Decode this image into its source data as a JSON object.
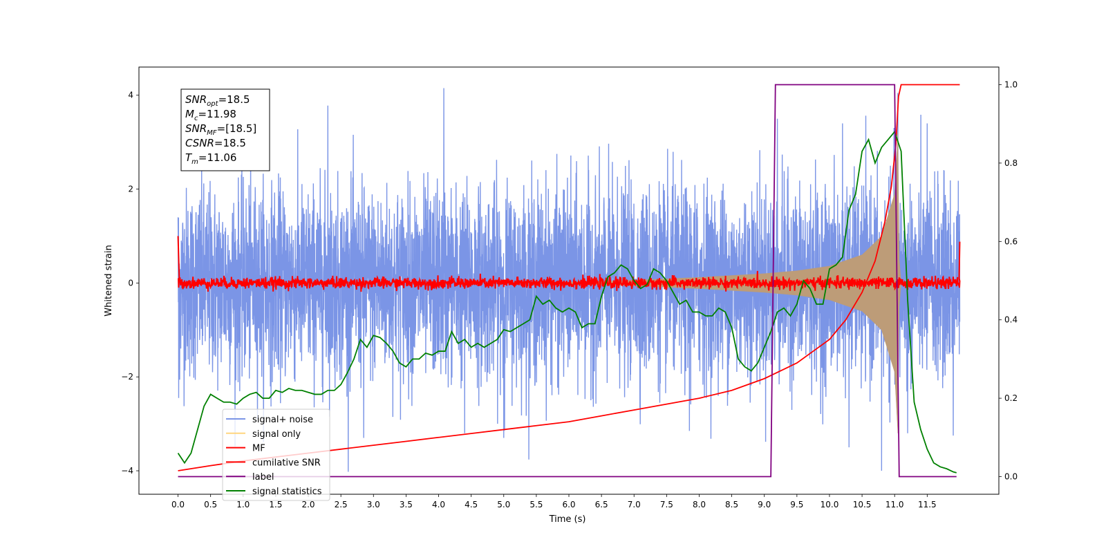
{
  "chart_data": {
    "type": "line",
    "title": "",
    "xlabel": "Time (s)",
    "ylabel": "Whitened strain",
    "xlim": [
      -0.6,
      12.6
    ],
    "ylim": [
      -4.5,
      4.6
    ],
    "y2lim": [
      -0.045,
      1.045
    ],
    "xticks": [
      0.0,
      0.5,
      1.0,
      1.5,
      2.0,
      2.5,
      3.0,
      3.5,
      4.0,
      4.5,
      5.0,
      5.5,
      6.0,
      6.5,
      7.0,
      7.5,
      8.0,
      8.5,
      9.0,
      9.5,
      10.0,
      10.5,
      11.0,
      11.5
    ],
    "xtick_labels": [
      "0.0",
      "0.5",
      "1.0",
      "1.5",
      "2.0",
      "2.5",
      "3.0",
      "3.5",
      "4.0",
      "4.5",
      "5.0",
      "5.5",
      "6.0",
      "6.5",
      "7.0",
      "7.5",
      "8.0",
      "8.5",
      "9.0",
      "9.5",
      "10.0",
      "10.5",
      "11.0",
      "11.5"
    ],
    "yticks": [
      -4,
      -2,
      0,
      2,
      4
    ],
    "ytick_labels": [
      "−4",
      "−2",
      "0",
      "2",
      "4"
    ],
    "y2ticks": [
      0.0,
      0.2,
      0.4,
      0.6,
      0.8,
      1.0
    ],
    "y2tick_labels": [
      "0.0",
      "0.2",
      "0.4",
      "0.6",
      "0.8",
      "1.0"
    ],
    "grid": false,
    "legend_position": "lower-left",
    "annotation": {
      "lines": [
        {
          "base": "SNR",
          "sub": "opt",
          "value": "=18.5"
        },
        {
          "base": "M",
          "sub": "c",
          "value": "=11.98"
        },
        {
          "base": "SNR",
          "sub": "MF",
          "value": "=[18.5]"
        },
        {
          "base": "CSNR",
          "sub": "",
          "value": "=18.5"
        },
        {
          "base": "T",
          "sub": "m",
          "value": "=11.06"
        }
      ]
    },
    "series": [
      {
        "name": "signal+ noise",
        "color": "#7b95e6",
        "axis": "left",
        "kind": "noise",
        "x_range": [
          0,
          12.0
        ],
        "noise_sigma": 1.0,
        "peaks": [
          [
            0.0,
            1.4
          ],
          [
            0.01,
            -2.45
          ],
          [
            4.08,
            4.15
          ],
          [
            2.3,
            3.78
          ],
          [
            9.2,
            3.5
          ],
          [
            10.2,
            3.4
          ],
          [
            11.5,
            3.4
          ],
          [
            10.8,
            -4.0
          ],
          [
            10.3,
            -3.5
          ],
          [
            2.85,
            -3.3
          ],
          [
            5.0,
            -3.3
          ],
          [
            4.4,
            -3.2
          ],
          [
            7.85,
            -3.15
          ],
          [
            11.2,
            -3.2
          ],
          [
            11.9,
            -3.25
          ],
          [
            11.05,
            4.05
          ]
        ]
      },
      {
        "name": "signal only",
        "color": "#ffd57f",
        "fill_color": "#bd9c78",
        "axis": "left",
        "kind": "chirp-envelope",
        "amplitude": [
          [
            6.0,
            0.02
          ],
          [
            7.0,
            0.06
          ],
          [
            8.0,
            0.12
          ],
          [
            9.0,
            0.2
          ],
          [
            9.5,
            0.26
          ],
          [
            10.0,
            0.36
          ],
          [
            10.5,
            0.6
          ],
          [
            10.8,
            1.0
          ],
          [
            11.0,
            1.9
          ],
          [
            11.05,
            3.2
          ],
          [
            11.07,
            0.5
          ],
          [
            11.1,
            0.0
          ]
        ]
      },
      {
        "name": "MF",
        "color": "#ff0000",
        "axis": "left",
        "kind": "matched-filter",
        "x_range": [
          0,
          12.0
        ],
        "noise_amplitude": 0.06,
        "edge_values": [
          [
            0.0,
            1.0
          ],
          [
            12.0,
            0.88
          ]
        ]
      },
      {
        "name": "cumilative SNR",
        "color": "#ff0000",
        "axis": "right",
        "x": [
          0.0,
          0.5,
          1.0,
          1.5,
          2.0,
          2.5,
          3.0,
          3.5,
          4.0,
          4.5,
          5.0,
          5.5,
          6.0,
          6.5,
          7.0,
          7.5,
          8.0,
          8.5,
          9.0,
          9.25,
          9.5,
          9.75,
          10.0,
          10.25,
          10.5,
          10.7,
          10.85,
          10.95,
          11.02,
          11.06,
          11.1,
          11.5,
          12.0
        ],
        "y": [
          0.015,
          0.028,
          0.04,
          0.05,
          0.06,
          0.07,
          0.08,
          0.09,
          0.1,
          0.11,
          0.12,
          0.13,
          0.14,
          0.155,
          0.17,
          0.185,
          0.2,
          0.22,
          0.25,
          0.27,
          0.29,
          0.32,
          0.35,
          0.4,
          0.47,
          0.55,
          0.65,
          0.74,
          0.85,
          0.97,
          1.0,
          1.0,
          1.0
        ]
      },
      {
        "name": "label",
        "color": "#800080",
        "axis": "right",
        "x": [
          0.0,
          9.1,
          9.17,
          11.0,
          11.07,
          11.95
        ],
        "y": [
          0.0,
          0.0,
          1.0,
          1.0,
          0.0,
          0.0
        ]
      },
      {
        "name": "signal statistics",
        "color": "#008000",
        "axis": "right",
        "x": [
          0.0,
          0.1,
          0.2,
          0.3,
          0.4,
          0.5,
          0.6,
          0.7,
          0.8,
          0.9,
          1.0,
          1.1,
          1.2,
          1.3,
          1.4,
          1.5,
          1.6,
          1.7,
          1.8,
          1.9,
          2.0,
          2.1,
          2.2,
          2.3,
          2.4,
          2.5,
          2.6,
          2.7,
          2.8,
          2.9,
          3.0,
          3.1,
          3.2,
          3.3,
          3.4,
          3.5,
          3.6,
          3.7,
          3.8,
          3.9,
          4.0,
          4.1,
          4.2,
          4.3,
          4.4,
          4.5,
          4.6,
          4.7,
          4.8,
          4.9,
          5.0,
          5.1,
          5.2,
          5.3,
          5.4,
          5.5,
          5.6,
          5.7,
          5.8,
          5.9,
          6.0,
          6.1,
          6.2,
          6.3,
          6.4,
          6.5,
          6.6,
          6.7,
          6.8,
          6.9,
          7.0,
          7.1,
          7.2,
          7.3,
          7.4,
          7.5,
          7.6,
          7.7,
          7.8,
          7.9,
          8.0,
          8.1,
          8.2,
          8.3,
          8.4,
          8.5,
          8.6,
          8.7,
          8.8,
          8.9,
          9.0,
          9.1,
          9.2,
          9.3,
          9.4,
          9.5,
          9.6,
          9.7,
          9.8,
          9.9,
          10.0,
          10.1,
          10.2,
          10.3,
          10.4,
          10.5,
          10.6,
          10.7,
          10.8,
          10.9,
          11.0,
          11.1,
          11.2,
          11.3,
          11.4,
          11.5,
          11.6,
          11.7,
          11.8,
          11.9,
          11.95
        ],
        "y": [
          0.06,
          0.035,
          0.06,
          0.12,
          0.18,
          0.21,
          0.2,
          0.19,
          0.19,
          0.185,
          0.2,
          0.21,
          0.215,
          0.2,
          0.2,
          0.22,
          0.215,
          0.225,
          0.22,
          0.22,
          0.215,
          0.21,
          0.21,
          0.22,
          0.22,
          0.235,
          0.265,
          0.3,
          0.35,
          0.33,
          0.36,
          0.355,
          0.34,
          0.32,
          0.29,
          0.28,
          0.3,
          0.3,
          0.315,
          0.31,
          0.32,
          0.32,
          0.37,
          0.34,
          0.35,
          0.33,
          0.34,
          0.33,
          0.34,
          0.35,
          0.375,
          0.37,
          0.38,
          0.39,
          0.4,
          0.46,
          0.44,
          0.45,
          0.43,
          0.42,
          0.43,
          0.42,
          0.38,
          0.39,
          0.39,
          0.46,
          0.51,
          0.52,
          0.54,
          0.53,
          0.5,
          0.48,
          0.49,
          0.53,
          0.52,
          0.5,
          0.47,
          0.44,
          0.45,
          0.42,
          0.42,
          0.41,
          0.41,
          0.43,
          0.42,
          0.38,
          0.3,
          0.28,
          0.27,
          0.29,
          0.33,
          0.37,
          0.42,
          0.43,
          0.41,
          0.44,
          0.5,
          0.48,
          0.44,
          0.44,
          0.53,
          0.54,
          0.56,
          0.68,
          0.72,
          0.83,
          0.86,
          0.8,
          0.84,
          0.86,
          0.88,
          0.83,
          0.45,
          0.19,
          0.12,
          0.07,
          0.035,
          0.025,
          0.02,
          0.012,
          0.01
        ]
      }
    ]
  }
}
